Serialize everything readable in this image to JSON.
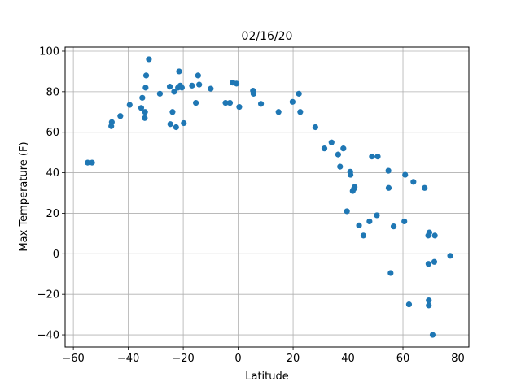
{
  "chart_data": {
    "type": "scatter",
    "title": "02/16/20",
    "xlabel": "Latitude",
    "ylabel": "Max Temperature (F)",
    "xlim": [
      -63,
      84
    ],
    "ylim": [
      -46,
      102
    ],
    "xticks": [
      -60,
      -40,
      -20,
      0,
      20,
      40,
      60,
      80
    ],
    "yticks": [
      -40,
      -20,
      0,
      20,
      40,
      60,
      80,
      100
    ],
    "grid": true,
    "marker_color": "#1f77b4",
    "points": [
      {
        "x": -54.8,
        "y": 45
      },
      {
        "x": -53.2,
        "y": 45
      },
      {
        "x": -46.2,
        "y": 63
      },
      {
        "x": -46.0,
        "y": 65
      },
      {
        "x": -42.9,
        "y": 68
      },
      {
        "x": -39.5,
        "y": 73.5
      },
      {
        "x": -35.3,
        "y": 72
      },
      {
        "x": -34.9,
        "y": 77
      },
      {
        "x": -34.0,
        "y": 67
      },
      {
        "x": -33.9,
        "y": 70
      },
      {
        "x": -33.7,
        "y": 82
      },
      {
        "x": -33.5,
        "y": 88
      },
      {
        "x": -32.5,
        "y": 96
      },
      {
        "x": -28.5,
        "y": 79
      },
      {
        "x": -24.9,
        "y": 82.5
      },
      {
        "x": -24.7,
        "y": 64
      },
      {
        "x": -23.9,
        "y": 70
      },
      {
        "x": -23.3,
        "y": 80
      },
      {
        "x": -22.6,
        "y": 62.5
      },
      {
        "x": -21.9,
        "y": 82
      },
      {
        "x": -21.5,
        "y": 90
      },
      {
        "x": -21.1,
        "y": 83
      },
      {
        "x": -20.5,
        "y": 82
      },
      {
        "x": -19.8,
        "y": 64.5
      },
      {
        "x": -16.8,
        "y": 83
      },
      {
        "x": -15.4,
        "y": 74.5
      },
      {
        "x": -14.6,
        "y": 88
      },
      {
        "x": -14.2,
        "y": 83.5
      },
      {
        "x": -10.0,
        "y": 81.5
      },
      {
        "x": -4.6,
        "y": 74.5
      },
      {
        "x": -3.0,
        "y": 74.5
      },
      {
        "x": -2.0,
        "y": 84.5
      },
      {
        "x": -0.6,
        "y": 84
      },
      {
        "x": 0.4,
        "y": 72.5
      },
      {
        "x": 5.4,
        "y": 80.5
      },
      {
        "x": 5.6,
        "y": 79
      },
      {
        "x": 8.3,
        "y": 74
      },
      {
        "x": 14.7,
        "y": 70
      },
      {
        "x": 19.8,
        "y": 75
      },
      {
        "x": 22.1,
        "y": 79
      },
      {
        "x": 22.6,
        "y": 70
      },
      {
        "x": 28.1,
        "y": 62.5
      },
      {
        "x": 31.4,
        "y": 52
      },
      {
        "x": 34.0,
        "y": 55
      },
      {
        "x": 36.4,
        "y": 49
      },
      {
        "x": 37.1,
        "y": 43
      },
      {
        "x": 38.3,
        "y": 52
      },
      {
        "x": 39.6,
        "y": 21
      },
      {
        "x": 40.8,
        "y": 40.5
      },
      {
        "x": 40.9,
        "y": 39
      },
      {
        "x": 41.7,
        "y": 31
      },
      {
        "x": 42.1,
        "y": 32
      },
      {
        "x": 42.4,
        "y": 33
      },
      {
        "x": 44.0,
        "y": 14
      },
      {
        "x": 45.6,
        "y": 9
      },
      {
        "x": 47.8,
        "y": 16
      },
      {
        "x": 48.7,
        "y": 48
      },
      {
        "x": 50.5,
        "y": 19
      },
      {
        "x": 50.8,
        "y": 48
      },
      {
        "x": 54.7,
        "y": 41
      },
      {
        "x": 54.8,
        "y": 32.5
      },
      {
        "x": 55.5,
        "y": -9.5
      },
      {
        "x": 56.6,
        "y": 13.5
      },
      {
        "x": 60.5,
        "y": 16
      },
      {
        "x": 60.8,
        "y": 39
      },
      {
        "x": 62.2,
        "y": -25
      },
      {
        "x": 63.8,
        "y": 35.5
      },
      {
        "x": 67.9,
        "y": 32.5
      },
      {
        "x": 69.2,
        "y": 9
      },
      {
        "x": 69.3,
        "y": -5
      },
      {
        "x": 69.4,
        "y": -23
      },
      {
        "x": 69.4,
        "y": -25.5
      },
      {
        "x": 69.6,
        "y": 10.5
      },
      {
        "x": 70.8,
        "y": -40
      },
      {
        "x": 71.4,
        "y": -4
      },
      {
        "x": 71.6,
        "y": 9
      },
      {
        "x": 77.2,
        "y": -1
      }
    ]
  }
}
